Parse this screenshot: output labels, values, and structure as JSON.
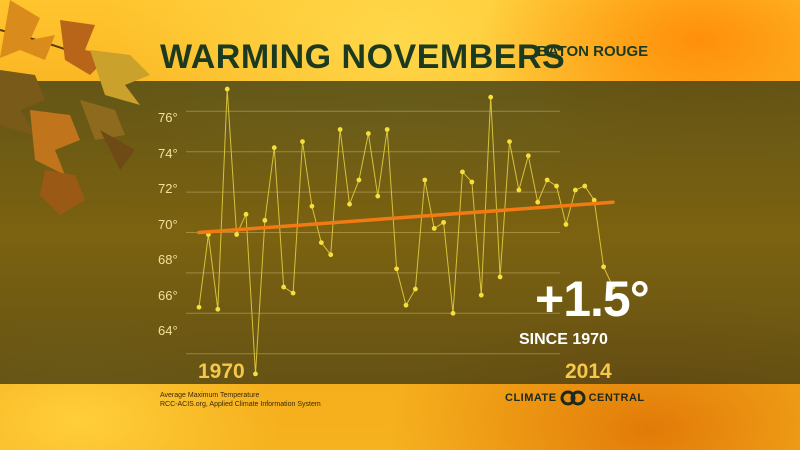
{
  "header": {
    "title": "WARMING NOVEMBERS",
    "location": "BATON ROUGE"
  },
  "footer": {
    "source_line1": "Average Maximum Temperature",
    "source_line2": "RCC-ACIS.org, Applied Climate Information System",
    "brand_left": "CLIMATE",
    "brand_right": "CENTRAL"
  },
  "callout": {
    "value": "+1.5°",
    "label": "SINCE 1970"
  },
  "colors": {
    "trend": "#f27a12",
    "points": "#f5df3c",
    "title": "#1b3a1f"
  },
  "chart_data": {
    "type": "line",
    "title": "WARMING NOVEMBERS",
    "xlabel": "",
    "ylabel": "",
    "x_start_label": "1970",
    "x_end_label": "2014",
    "xlim": [
      1970,
      2014
    ],
    "ylim": [
      62.5,
      77.5
    ],
    "yticks": [
      64,
      66,
      68,
      70,
      72,
      74,
      76
    ],
    "ytick_labels": [
      "64°",
      "66°",
      "68°",
      "70°",
      "72°",
      "74°",
      "76°"
    ],
    "grid": true,
    "x": [
      1970,
      1971,
      1972,
      1973,
      1974,
      1975,
      1976,
      1977,
      1978,
      1979,
      1980,
      1981,
      1982,
      1983,
      1984,
      1985,
      1986,
      1987,
      1988,
      1989,
      1990,
      1991,
      1992,
      1993,
      1994,
      1995,
      1996,
      1997,
      1998,
      1999,
      2000,
      2001,
      2002,
      2003,
      2004,
      2005,
      2006,
      2007,
      2008,
      2009,
      2010,
      2011,
      2012,
      2013,
      2014
    ],
    "series": [
      {
        "values": [
          66.3,
          69.9,
          66.2,
          77.1,
          69.9,
          70.9,
          63.0,
          70.6,
          74.2,
          67.3,
          67.0,
          74.5,
          71.3,
          69.5,
          68.9,
          75.1,
          71.4,
          72.6,
          74.9,
          71.8,
          75.1,
          68.2,
          66.4,
          67.2,
          72.6,
          70.2,
          70.5,
          66.0,
          73.0,
          72.5,
          66.9,
          76.7,
          67.8,
          74.5,
          72.1,
          73.8,
          71.5,
          72.6,
          72.3,
          70.4,
          72.1,
          72.3,
          71.6,
          68.3,
          67.3
        ]
      }
    ],
    "trend": {
      "start": [
        1970,
        70.0
      ],
      "end": [
        2014,
        71.5
      ]
    }
  }
}
